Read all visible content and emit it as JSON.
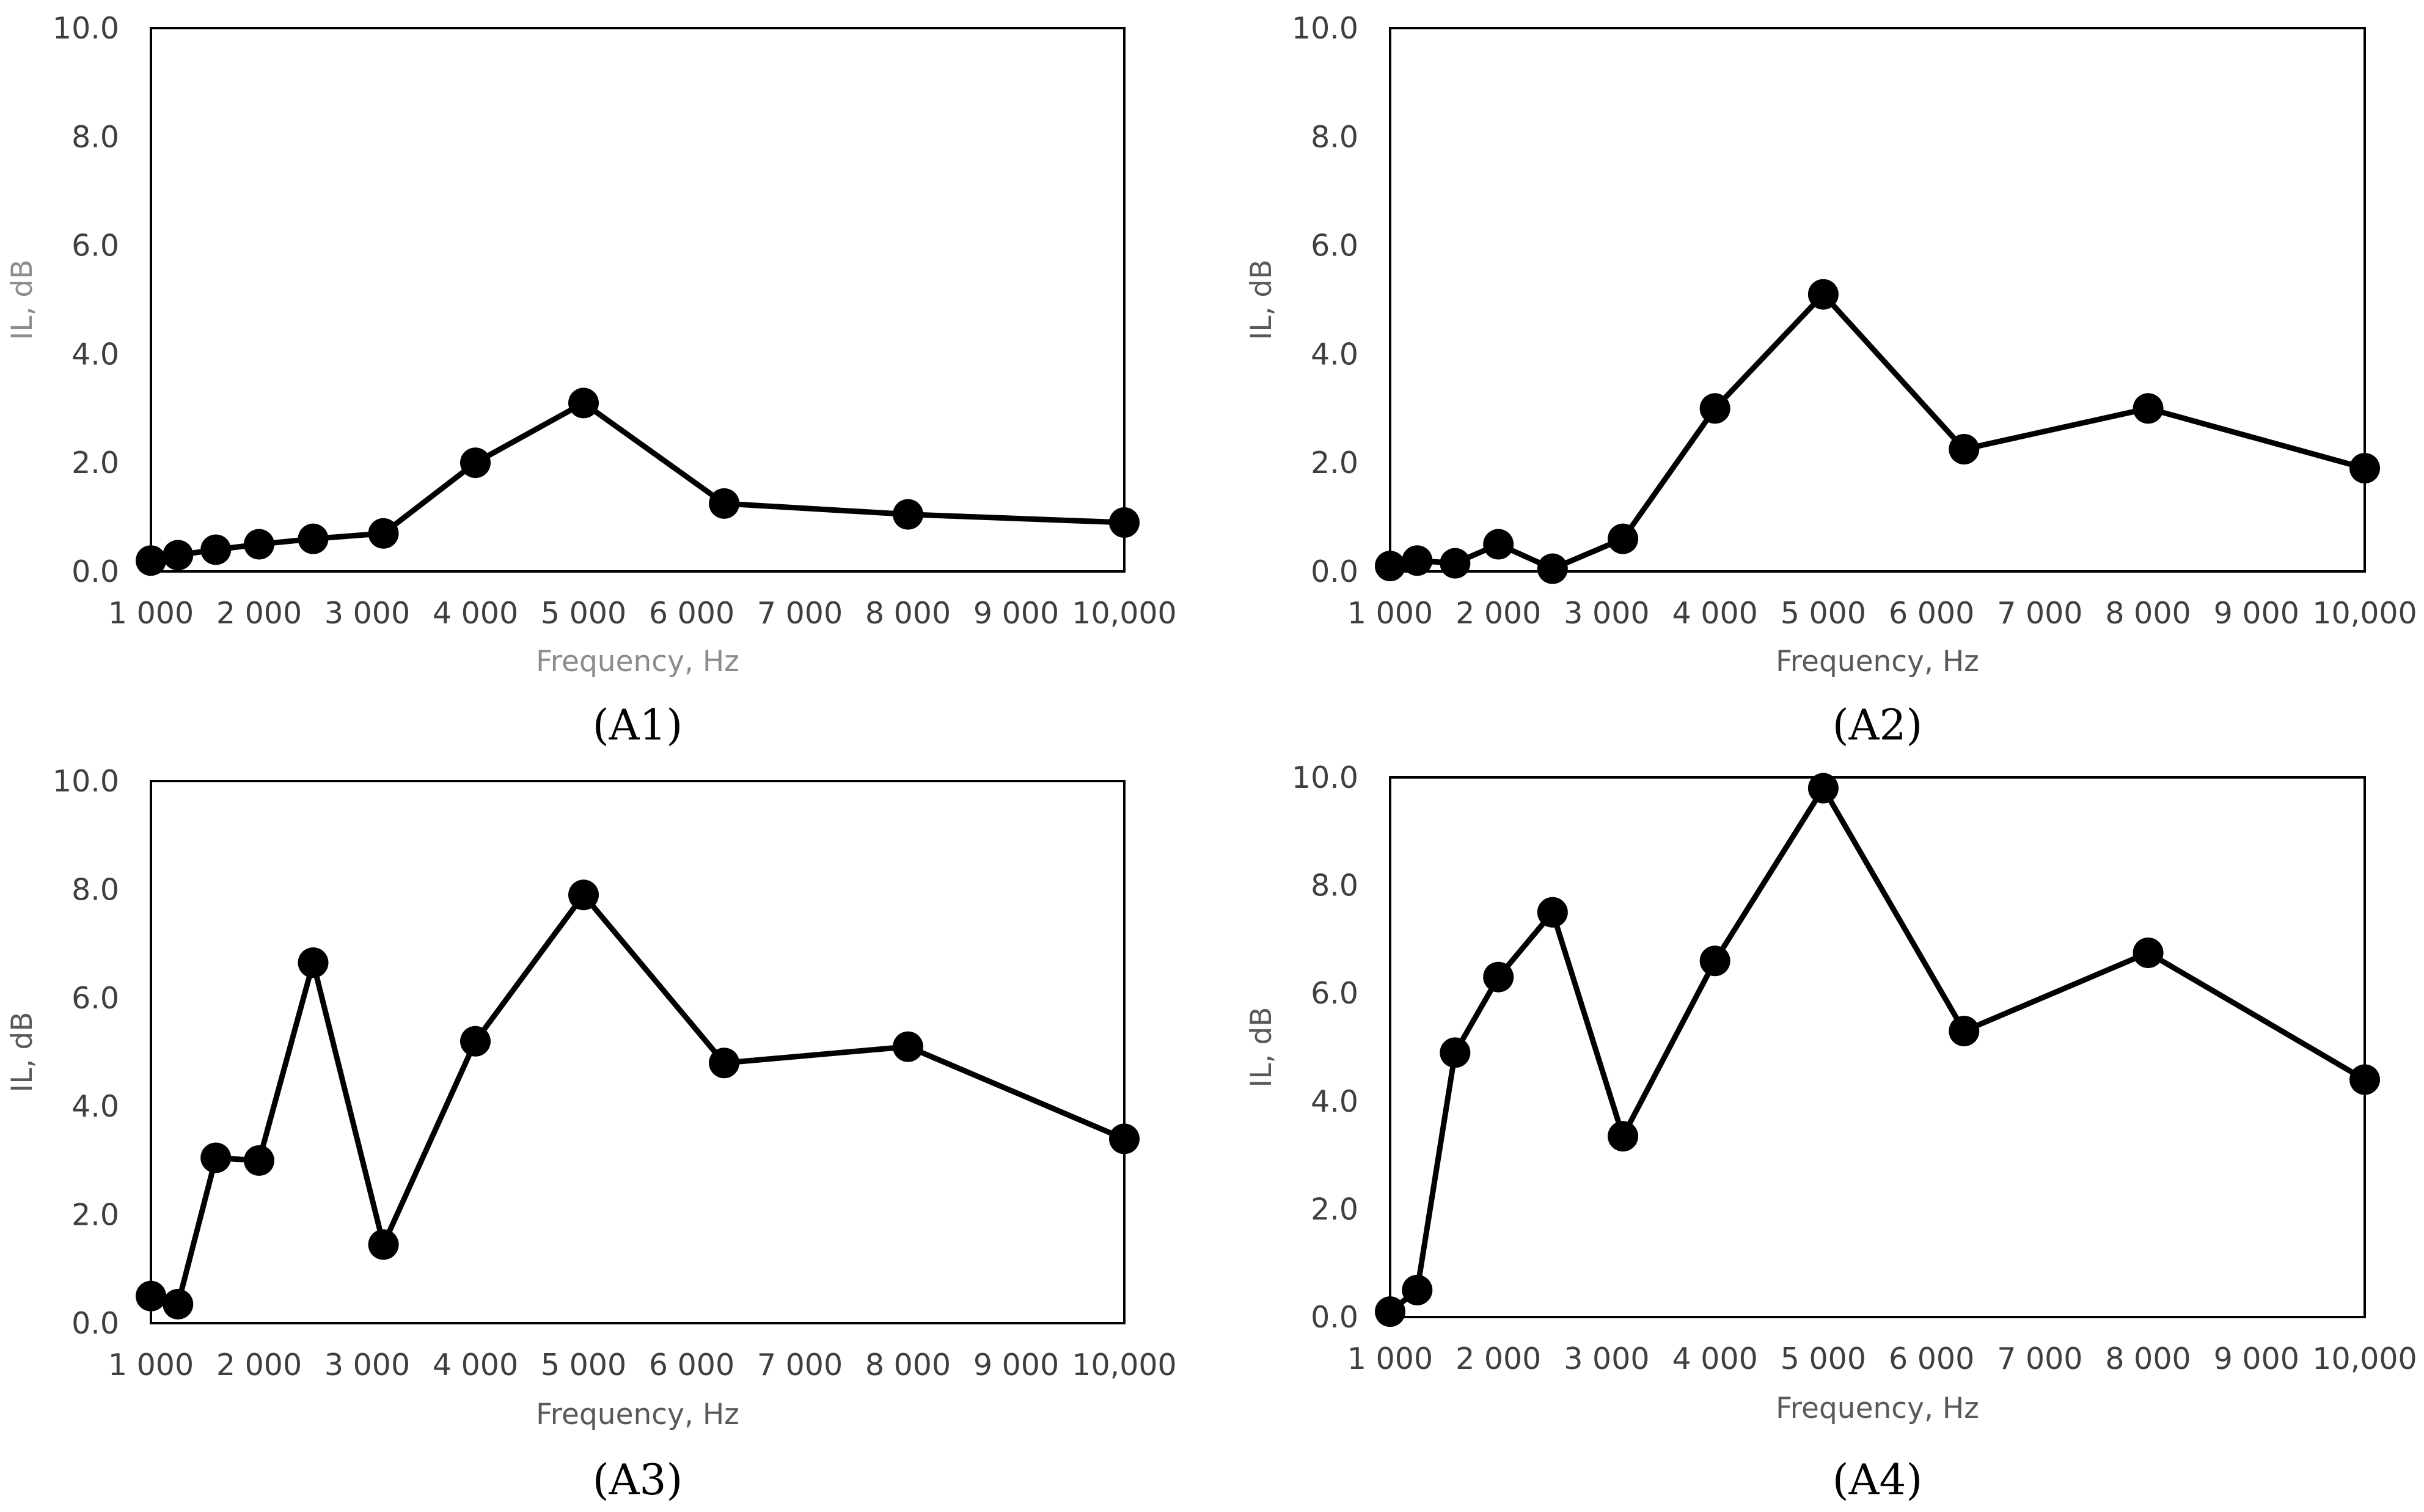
{
  "chart_data": [
    {
      "type": "line",
      "caption": "(A1)",
      "xlabel": "Frequency, Hz",
      "ylabel": "IL, dB",
      "xlim": [
        1000,
        10000
      ],
      "ylim": [
        0,
        10
      ],
      "grid": false,
      "x_ticks": [
        "1 000",
        "2 000",
        "3 000",
        "4 000",
        "5 000",
        "6 000",
        "7 000",
        "8 000",
        "9 000",
        "10,000"
      ],
      "y_ticks": [
        "0.0",
        "2.0",
        "4.0",
        "6.0",
        "8.0",
        "10.0"
      ],
      "x": [
        1000,
        1250,
        1600,
        2000,
        2500,
        3150,
        4000,
        5000,
        6300,
        8000,
        10000
      ],
      "y": [
        0.2,
        0.3,
        0.4,
        0.5,
        0.6,
        0.7,
        2.0,
        3.1,
        1.25,
        1.05,
        0.9
      ]
    },
    {
      "type": "line",
      "caption": "(A2)",
      "xlabel": "Frequency, Hz",
      "ylabel": "IL, dB",
      "xlim": [
        1000,
        10000
      ],
      "ylim": [
        0,
        10
      ],
      "grid": false,
      "x_ticks": [
        "1 000",
        "2 000",
        "3 000",
        "4 000",
        "5 000",
        "6 000",
        "7 000",
        "8 000",
        "9 000",
        "10,000"
      ],
      "y_ticks": [
        "0.0",
        "2.0",
        "4.0",
        "6.0",
        "8.0",
        "10.0"
      ],
      "x": [
        1000,
        1250,
        1600,
        2000,
        2500,
        3150,
        4000,
        5000,
        6300,
        8000,
        10000
      ],
      "y": [
        0.1,
        0.2,
        0.15,
        0.5,
        0.05,
        0.6,
        3.0,
        5.1,
        2.25,
        3.0,
        1.9
      ]
    },
    {
      "type": "line",
      "caption": "(A3)",
      "xlabel": "Frequency, Hz",
      "ylabel": "IL, dB",
      "xlim": [
        1000,
        10000
      ],
      "ylim": [
        0,
        10
      ],
      "grid": false,
      "x_ticks": [
        "1 000",
        "2 000",
        "3 000",
        "4 000",
        "5 000",
        "6 000",
        "7 000",
        "8 000",
        "9 000",
        "10,000"
      ],
      "y_ticks": [
        "0.0",
        "2.0",
        "4.0",
        "6.0",
        "8.0",
        "10.0"
      ],
      "x": [
        1000,
        1250,
        1600,
        2000,
        2500,
        3150,
        4000,
        5000,
        6300,
        8000,
        10000
      ],
      "y": [
        0.5,
        0.35,
        3.05,
        3.0,
        6.65,
        1.45,
        5.2,
        7.9,
        4.8,
        5.1,
        3.4
      ]
    },
    {
      "type": "line",
      "caption": "(A4)",
      "xlabel": "Frequency, Hz",
      "ylabel": "IL, dB",
      "xlim": [
        1000,
        10000
      ],
      "ylim": [
        0,
        10
      ],
      "grid": false,
      "x_ticks": [
        "1 000",
        "2 000",
        "3 000",
        "4 000",
        "5 000",
        "6 000",
        "7 000",
        "8 000",
        "9 000",
        "10,000"
      ],
      "y_ticks": [
        "0.0",
        "2.0",
        "4.0",
        "6.0",
        "8.0",
        "10.0"
      ],
      "x": [
        1000,
        1250,
        1600,
        2000,
        2500,
        3150,
        4000,
        5000,
        6300,
        8000,
        10000
      ],
      "y": [
        0.1,
        0.5,
        4.9,
        6.3,
        7.5,
        3.35,
        6.6,
        9.8,
        5.3,
        6.75,
        4.4
      ]
    }
  ]
}
